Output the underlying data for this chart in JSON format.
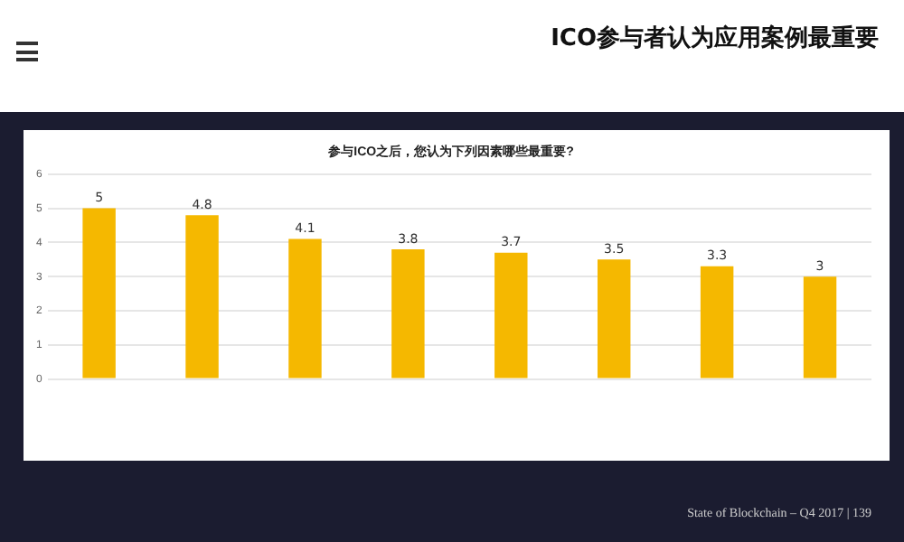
{
  "chart_data": {
    "type": "bar",
    "title": "ICO参与者认为应用案例最重要",
    "subtitle": "参与ICO之后，您认为下列因素哪些最重要?",
    "categories": [
      null,
      null,
      null,
      null,
      null,
      null,
      null,
      null
    ],
    "values": [
      5.0,
      4.8,
      4.1,
      3.8,
      3.7,
      3.5,
      3.3,
      3.0
    ],
    "color": "#f5b800",
    "ylim": [
      0,
      6
    ],
    "yticks": [
      0,
      1,
      2,
      3,
      4,
      5,
      6
    ],
    "grid": "y",
    "data_labels": true,
    "annotations": [
      "State of Blockchain – Q4 2017 | 139"
    ]
  }
}
